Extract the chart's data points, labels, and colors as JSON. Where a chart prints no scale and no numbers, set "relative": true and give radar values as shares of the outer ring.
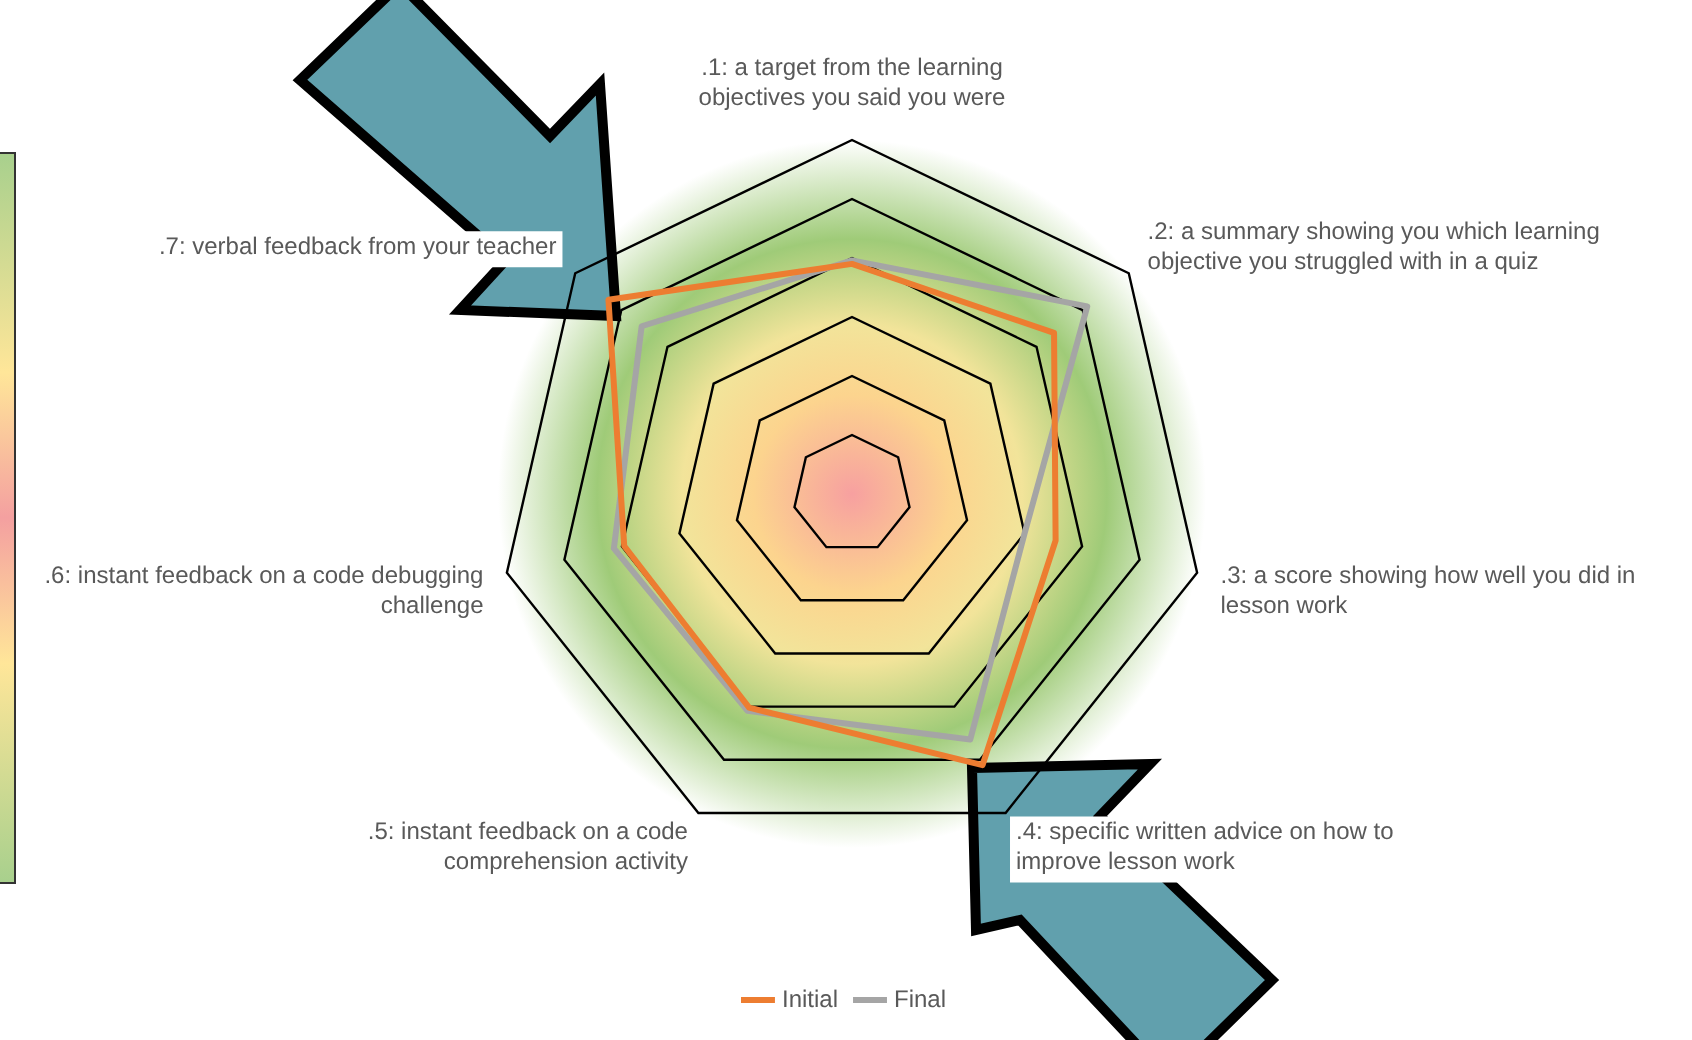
{
  "chart_data": {
    "type": "radar",
    "relative": true,
    "grid": true,
    "legend": "bottom",
    "marker": "none",
    "categories": [
      ".1: a target from the learning objectives you said you were",
      ".2: a summary showing you which learning objective you struggled with in a quiz",
      ".3: a score showing how well you did in lesson work",
      ".4: specific written advice on how to improve lesson work",
      ".5: instant feedback on a code comprehension activity",
      ".6: instant feedback on a code debugging challenge",
      ".7: verbal feedback from your teacher"
    ],
    "series": [
      {
        "name": "Initial",
        "color": "#ed7d31",
        "values": [
          0.65,
          0.73,
          0.59,
          0.85,
          0.67,
          0.66,
          0.88
        ]
      },
      {
        "name": "Final",
        "color": "#a5a5a5",
        "values": [
          0.66,
          0.85,
          0.5,
          0.77,
          0.68,
          0.69,
          0.76
        ]
      }
    ]
  }
}
